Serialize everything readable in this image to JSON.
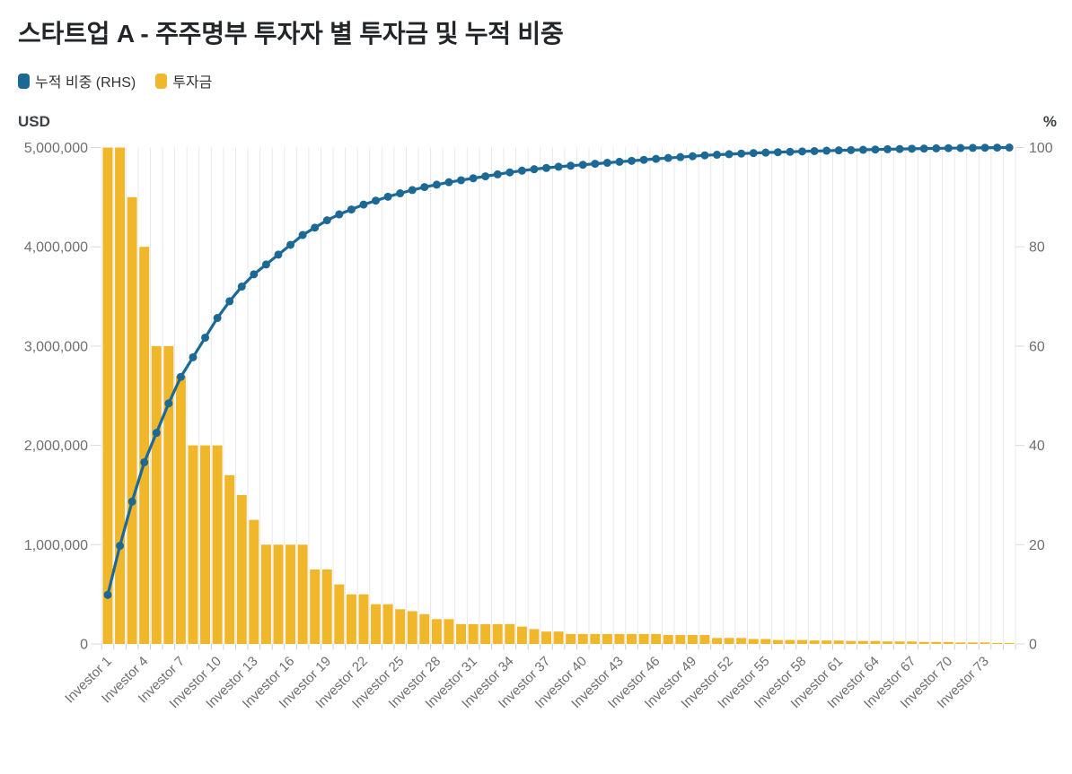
{
  "header": {
    "title": "스타트업 A - 주주명부 투자자 별 투자금 및 누적 비중",
    "legend": [
      {
        "label": "누적 비중 (RHS)",
        "color": "#1d6996"
      },
      {
        "label": "투자금",
        "color": "#f0b72b"
      }
    ]
  },
  "chart_data": {
    "type": "bar",
    "subtype": "pareto-combo-bar-line",
    "title": "스타트업 A - 주주명부 투자자 별 투자금 및 누적 비중",
    "category_prefix": "Investor",
    "n_categories": 75,
    "x_label_every": 3,
    "x_tick_labels": [
      "Investor 1",
      "Investor 4",
      "Investor 7",
      "Investor 10",
      "Investor 13",
      "Investor 16",
      "Investor 19",
      "Investor 22",
      "Investor 25",
      "Investor 28",
      "Investor 31",
      "Investor 34",
      "Investor 37",
      "Investor 40",
      "Investor 43",
      "Investor 46",
      "Investor 49",
      "Investor 52",
      "Investor 55",
      "Investor 58",
      "Investor 61",
      "Investor 64",
      "Investor 67",
      "Investor 70",
      "Investor 73"
    ],
    "series": [
      {
        "name": "투자금",
        "type": "bar",
        "axis": "left",
        "color": "#f0b72b",
        "values": [
          5000000,
          5000000,
          4500000,
          4000000,
          3000000,
          3000000,
          2700000,
          2000000,
          2000000,
          2000000,
          1700000,
          1500000,
          1250000,
          1000000,
          1000000,
          1000000,
          1000000,
          750000,
          750000,
          600000,
          500000,
          500000,
          400000,
          400000,
          350000,
          330000,
          300000,
          250000,
          250000,
          200000,
          200000,
          200000,
          200000,
          200000,
          175000,
          150000,
          125000,
          125000,
          100000,
          100000,
          100000,
          100000,
          100000,
          100000,
          100000,
          100000,
          90000,
          90000,
          90000,
          90000,
          60000,
          60000,
          60000,
          50000,
          50000,
          40000,
          40000,
          40000,
          35000,
          35000,
          35000,
          30000,
          30000,
          30000,
          25000,
          25000,
          25000,
          20000,
          20000,
          20000,
          15000,
          15000,
          15000,
          10000,
          10000
        ]
      },
      {
        "name": "누적 비중 (RHS)",
        "type": "line",
        "axis": "right",
        "color": "#1d6996",
        "derived": "cumulative_percent_of_total_investment",
        "start_percent": 9.89,
        "end_percent": 100
      }
    ],
    "axes": {
      "left": {
        "title": "USD",
        "min": 0,
        "max": 5000000,
        "tick_labels": [
          "0",
          "1,000,000",
          "2,000,000",
          "3,000,000",
          "4,000,000",
          "5,000,000"
        ]
      },
      "right": {
        "title": "%",
        "min": 0,
        "max": 100,
        "tick_labels": [
          "0",
          "20",
          "40",
          "60",
          "80",
          "100"
        ]
      }
    },
    "grid": "vertical-category-boundaries",
    "legend_position": "top-left",
    "background": "#ffffff"
  }
}
